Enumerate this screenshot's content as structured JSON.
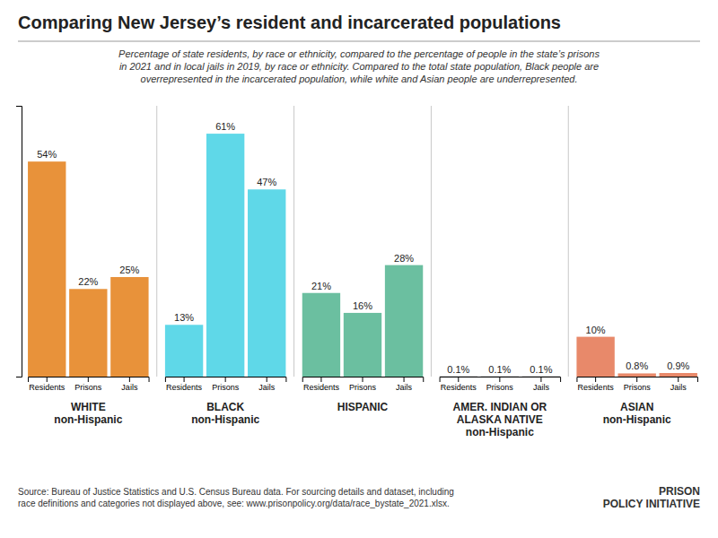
{
  "chart_data": {
    "type": "bar",
    "title": "Comparing New Jersey’s resident and incarcerated populations",
    "subtitle": "Percentage of state residents, by race or ethnicity, compared to the percentage of people in the state’s prisons\nin 2021 and in local jails in 2019, by race or ethnicity. Compared to the total state population, Black people are\noverrepresented in the incarcerated population, while white and Asian people are underrepresented.",
    "categories": [
      "Residents",
      "Prisons",
      "Jails"
    ],
    "series": [
      {
        "name": "WHITE\nnon-Hispanic",
        "color": "#e8923a",
        "values": [
          54,
          22,
          25
        ],
        "value_labels": [
          "54%",
          "22%",
          "25%"
        ]
      },
      {
        "name": "BLACK\nnon-Hispanic",
        "color": "#5fd8e8",
        "values": [
          13,
          61,
          47
        ],
        "value_labels": [
          "13%",
          "61%",
          "47%"
        ]
      },
      {
        "name": "HISPANIC",
        "color": "#6bbfa0",
        "values": [
          21,
          16,
          28
        ],
        "value_labels": [
          "21%",
          "16%",
          "28%"
        ]
      },
      {
        "name": "AMER. INDIAN OR\nALASKA NATIVE\nnon-Hispanic",
        "color": "#9e9e9e",
        "values": [
          0.1,
          0.1,
          0.1
        ],
        "value_labels": [
          "0.1%",
          "0.1%",
          "0.1%"
        ]
      },
      {
        "name": "ASIAN\nnon-Hispanic",
        "color": "#e8896a",
        "values": [
          10,
          0.8,
          0.9
        ],
        "value_labels": [
          "10%",
          "0.8%",
          "0.9%"
        ]
      }
    ],
    "ylim": [
      0,
      68
    ],
    "yticks": [],
    "grid": false,
    "data_labels": true,
    "tick_labels": "x",
    "annotations": [
      "Source: Bureau of Justice Statistics and U.S. Census Bureau data. For sourcing details and dataset, including\nrace definitions and categories not displayed above, see: www.prisonpolicy.org/data/race_bystate_2021.xlsx.",
      "PRISON\nPOLICY INITIATIVE"
    ]
  }
}
